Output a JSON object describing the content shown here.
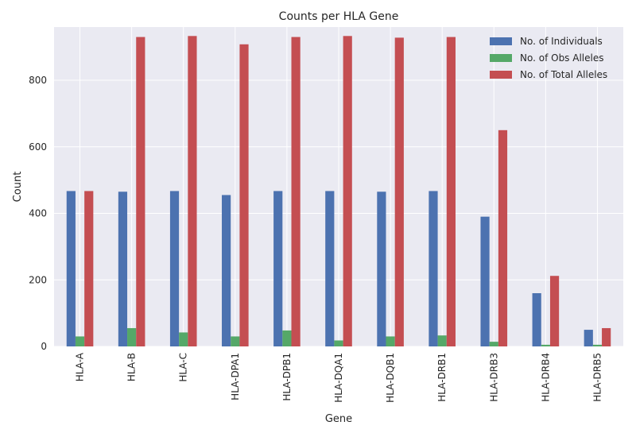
{
  "chart_data": {
    "type": "bar",
    "title": "Counts per HLA Gene",
    "xlabel": "Gene",
    "ylabel": "Count",
    "ylim": [
      0,
      960
    ],
    "yticks": [
      0,
      200,
      400,
      600,
      800
    ],
    "grid": true,
    "legend_position": "top-right",
    "categories": [
      "HLA-A",
      "HLA-B",
      "HLA-C",
      "HLA-DPA1",
      "HLA-DPB1",
      "HLA-DQA1",
      "HLA-DQB1",
      "HLA-DRB1",
      "HLA-DRB3",
      "HLA-DRB4",
      "HLA-DRB5"
    ],
    "series": [
      {
        "name": "No. of Individuals",
        "color": "#4c72b0",
        "values": [
          467,
          465,
          467,
          455,
          467,
          467,
          465,
          467,
          390,
          160,
          50
        ]
      },
      {
        "name": "No. of Obs Alleles",
        "color": "#55a868",
        "values": [
          30,
          55,
          42,
          30,
          48,
          18,
          30,
          33,
          14,
          5,
          5
        ]
      },
      {
        "name": "No. of Total Alleles",
        "color": "#c44e52",
        "values": [
          467,
          930,
          933,
          908,
          930,
          933,
          928,
          930,
          650,
          212,
          55
        ]
      }
    ]
  }
}
